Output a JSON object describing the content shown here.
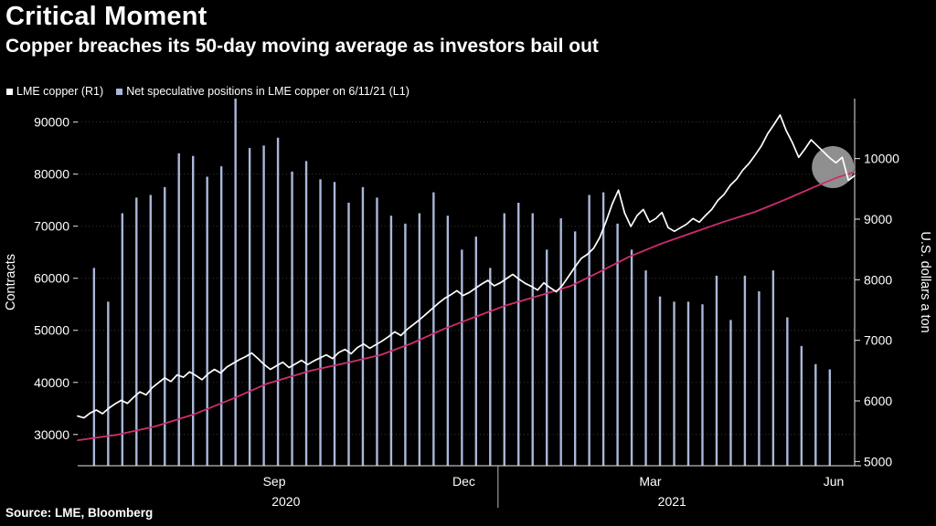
{
  "header": {
    "title": "Critical Moment",
    "subtitle": "Copper breaches its 50-day moving average as investors bail out"
  },
  "legend": {
    "items": [
      {
        "label": "LME copper (R1)",
        "color": "#ffffff",
        "marker": "square-icon"
      },
      {
        "label": "Net speculative positions in LME copper on 6/11/21 (L1)",
        "color": "#a9b7d9",
        "marker": "square-icon"
      }
    ]
  },
  "source": "Source: LME, Bloomberg",
  "chart_data": {
    "type": "mixed",
    "title": "Critical Moment",
    "subtitle": "Copper breaches its 50-day moving average as investors bail out",
    "background": "#000000",
    "grid": "dotted-horizontal",
    "left_axis": {
      "label": "Contracts",
      "ticks": [
        30000,
        40000,
        50000,
        60000,
        70000,
        80000,
        90000
      ],
      "domain": [
        24000,
        94500
      ]
    },
    "right_axis": {
      "label": "U.S. dollars a ton",
      "ticks": [
        5000,
        6000,
        7000,
        8000,
        9000,
        10000
      ],
      "domain": [
        4930,
        10990
      ]
    },
    "x_axis": {
      "month_ticks": [
        {
          "label": "Sep",
          "f": 0.253
        },
        {
          "label": "Dec",
          "f": 0.497
        },
        {
          "label": "Mar",
          "f": 0.737
        },
        {
          "label": "Jun",
          "f": 0.973
        }
      ],
      "year_labels": [
        {
          "label": "2020",
          "f": 0.268
        },
        {
          "label": "2021",
          "f": 0.765
        }
      ],
      "year_divider_f": 0.541
    },
    "series": [
      {
        "name": "Net speculative positions in LME copper on 6/11/21 (L1)",
        "type": "bar",
        "axis": "left",
        "color": "#a9b7d9",
        "bar_width": 2.4,
        "f_start": 0.021,
        "f_end": 0.968,
        "values": [
          62000,
          55500,
          72500,
          75500,
          76000,
          77500,
          84000,
          83500,
          79500,
          81500,
          94500,
          85000,
          85500,
          87000,
          80500,
          82500,
          79000,
          78500,
          74500,
          77500,
          75500,
          72000,
          70500,
          72500,
          76500,
          72000,
          65500,
          68000,
          62000,
          72500,
          74500,
          72500,
          65500,
          71500,
          69000,
          76000,
          76500,
          70500,
          65500,
          61500,
          56500,
          55500,
          55500,
          55000,
          60500,
          52000,
          60500,
          57500,
          61500,
          52500,
          47000,
          43500,
          42500
        ]
      },
      {
        "name": "50-day moving average",
        "type": "line",
        "axis": "right",
        "color": "#cf2d70",
        "width": 1.8,
        "points": [
          [
            0,
            5350
          ],
          [
            0.05,
            5440
          ],
          [
            0.1,
            5580
          ],
          [
            0.15,
            5780
          ],
          [
            0.2,
            6040
          ],
          [
            0.243,
            6280
          ],
          [
            0.3,
            6500
          ],
          [
            0.35,
            6640
          ],
          [
            0.39,
            6760
          ],
          [
            0.43,
            6950
          ],
          [
            0.47,
            7180
          ],
          [
            0.51,
            7380
          ],
          [
            0.552,
            7580
          ],
          [
            0.6,
            7760
          ],
          [
            0.635,
            7900
          ],
          [
            0.67,
            8120
          ],
          [
            0.71,
            8380
          ],
          [
            0.75,
            8590
          ],
          [
            0.792,
            8780
          ],
          [
            0.83,
            8950
          ],
          [
            0.872,
            9120
          ],
          [
            0.91,
            9320
          ],
          [
            0.955,
            9570
          ],
          [
            0.98,
            9700
          ],
          [
            1,
            9780
          ]
        ]
      },
      {
        "name": "LME copper (R1)",
        "type": "line",
        "axis": "right",
        "color": "#ffffff",
        "width": 1.7,
        "values": [
          5750,
          5720,
          5800,
          5850,
          5790,
          5880,
          5950,
          6010,
          5960,
          6060,
          6150,
          6100,
          6220,
          6300,
          6380,
          6320,
          6430,
          6390,
          6480,
          6420,
          6350,
          6450,
          6520,
          6460,
          6560,
          6620,
          6680,
          6730,
          6790,
          6700,
          6600,
          6520,
          6580,
          6640,
          6550,
          6610,
          6670,
          6600,
          6660,
          6710,
          6760,
          6700,
          6800,
          6850,
          6780,
          6880,
          6940,
          6870,
          6930,
          6990,
          7060,
          7140,
          7080,
          7180,
          7260,
          7340,
          7430,
          7520,
          7610,
          7690,
          7750,
          7820,
          7740,
          7790,
          7860,
          7930,
          7990,
          7900,
          7950,
          8020,
          8090,
          8010,
          7940,
          7890,
          7830,
          7950,
          7870,
          7800,
          7910,
          8060,
          8210,
          8350,
          8420,
          8520,
          8700,
          8960,
          9250,
          9480,
          9100,
          8880,
          9060,
          9160,
          8950,
          9010,
          9110,
          8860,
          8800,
          8860,
          8920,
          9010,
          8950,
          9060,
          9160,
          9310,
          9410,
          9560,
          9660,
          9810,
          9920,
          10060,
          10210,
          10410,
          10560,
          10720,
          10460,
          10260,
          10020,
          10160,
          10310,
          10210,
          10110,
          10010,
          9930,
          10020,
          9640,
          9720
        ]
      }
    ],
    "annotation_circle": {
      "f": 0.972,
      "value": 9860,
      "radius": 23,
      "color": "#a8a8a8",
      "opacity": 0.85
    }
  }
}
